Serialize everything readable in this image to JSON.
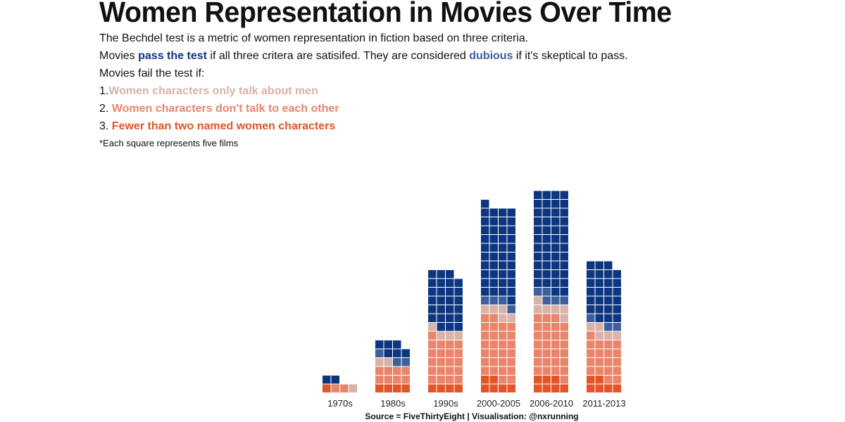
{
  "title": "Women Representation in Movies Over Time",
  "intro": {
    "line1": "The Bechdel test is a metric of women representation in fiction based on three criteria.",
    "line2_prefix": "Movies ",
    "line2_pass": "pass the test",
    "line2_mid": " if all three critera are satisifed. They are considered ",
    "line2_dubious": "dubious",
    "line2_suffix": " if it's skeptical to pass.",
    "line3": "Movies fail the test if:",
    "criteria": [
      {
        "num": "1.",
        "text": "Women characters only talk about men"
      },
      {
        "num": "2.",
        "text": "Women characters don't talk to each other"
      },
      {
        "num": "3.",
        "text": "Fewer than two named women characters"
      }
    ],
    "note": "*Each square represents five films"
  },
  "source": "Source = FiveThirtyEight | Visualisation: @nxrunning",
  "colors": {
    "pass": "#0d3680",
    "dubious": "#3d5f9e",
    "men": "#d9b2a8",
    "notalk": "#e8856b",
    "fewer": "#e15526"
  },
  "chart_data": {
    "type": "waffle",
    "unit": "five films per square",
    "squares_per_row": 4,
    "categories": [
      "1970s",
      "1980s",
      "1990s",
      "2000-2005",
      "2006-2010",
      "2011-2013"
    ],
    "series": [
      {
        "key": "fewer",
        "values": [
          1,
          4,
          4,
          6,
          7,
          6
        ]
      },
      {
        "key": "notalk",
        "values": [
          2,
          8,
          21,
          28,
          28,
          19
        ]
      },
      {
        "key": "men",
        "values": [
          1,
          2,
          4,
          5,
          6,
          5
        ]
      },
      {
        "key": "dubious",
        "values": [
          0,
          3,
          0,
          4,
          5,
          3
        ]
      },
      {
        "key": "pass",
        "values": [
          2,
          6,
          26,
          42,
          46,
          26
        ]
      }
    ]
  }
}
